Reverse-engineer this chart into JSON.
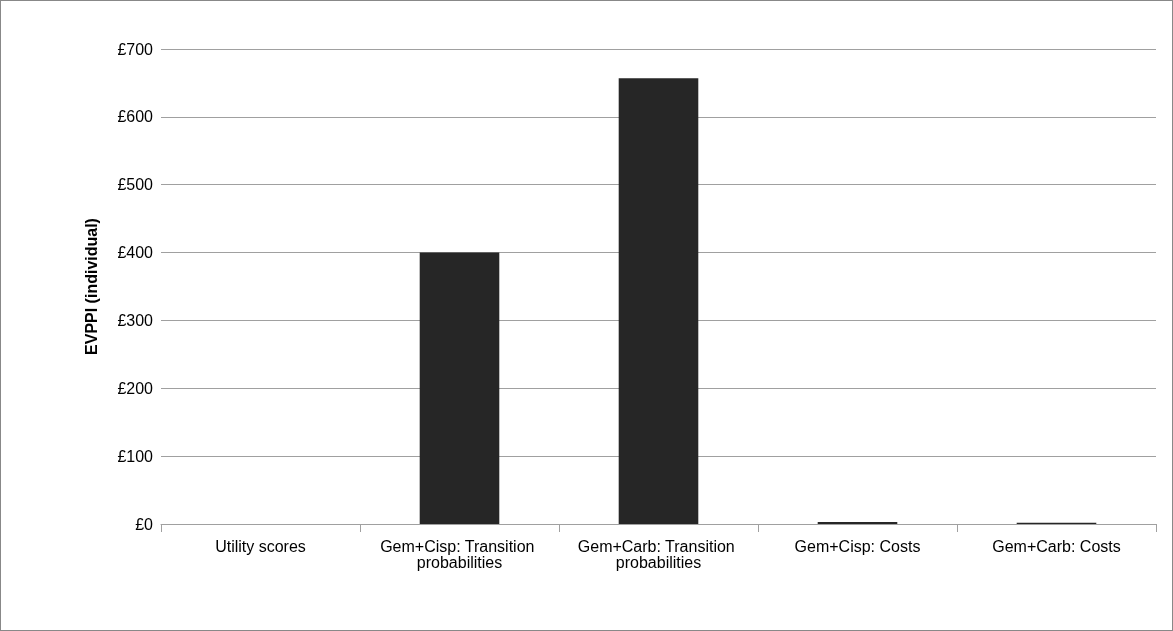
{
  "chart_data": {
    "type": "bar",
    "ylabel": "EVPPI (individual)",
    "categories": [
      "Utility scores",
      "Gem+Cisp: Transition probabilities",
      "Gem+Carb: Transition probabilities",
      "Gem+Cisp: Costs",
      "Gem+Carb: Costs"
    ],
    "values": [
      0,
      400,
      657,
      3,
      2
    ],
    "color": "#262626",
    "ylim": [
      0,
      700
    ],
    "yticks": [
      {
        "value": 0,
        "label": "£0"
      },
      {
        "value": 100,
        "label": "£100"
      },
      {
        "value": 200,
        "label": "£200"
      },
      {
        "value": 300,
        "label": "£300"
      },
      {
        "value": 400,
        "label": "£400"
      },
      {
        "value": 500,
        "label": "£500"
      },
      {
        "value": 600,
        "label": "£600"
      },
      {
        "value": 700,
        "label": "£700"
      }
    ],
    "grid": "y"
  }
}
